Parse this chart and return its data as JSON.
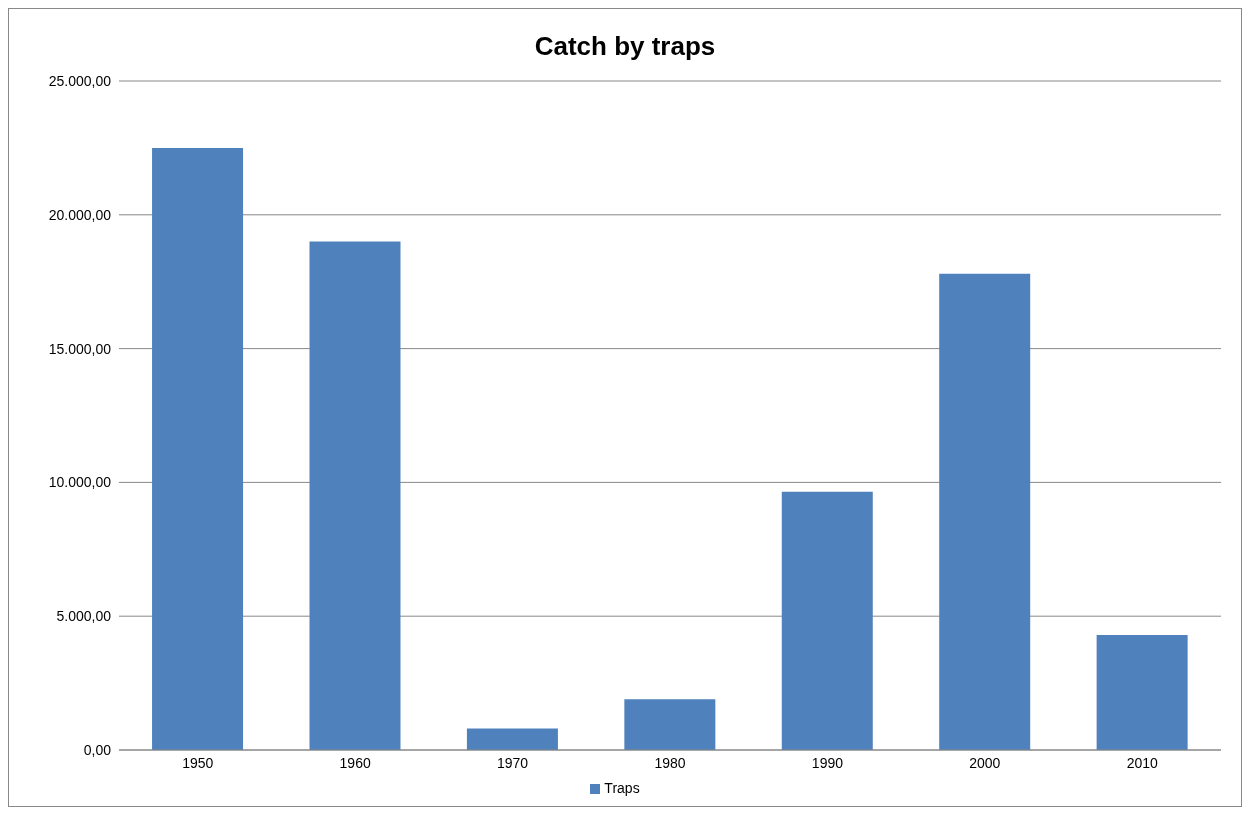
{
  "chart_data": {
    "type": "bar",
    "title": "Catch by traps",
    "categories": [
      "1950",
      "1960",
      "1970",
      "1980",
      "1990",
      "2000",
      "2010"
    ],
    "series": [
      {
        "name": "Traps",
        "color": "#4f81bd",
        "values": [
          22500,
          19000,
          800,
          1900,
          9650,
          17800,
          4300
        ]
      }
    ],
    "ylim": [
      0,
      25000
    ],
    "yticks": [
      {
        "value": 0,
        "label": "0,00"
      },
      {
        "value": 5000,
        "label": "5.000,00"
      },
      {
        "value": 10000,
        "label": "10.000,00"
      },
      {
        "value": 15000,
        "label": "15.000,00"
      },
      {
        "value": 20000,
        "label": "20.000,00"
      },
      {
        "value": 25000,
        "label": "25.000,00"
      }
    ],
    "grid": "y",
    "legend": "bottom"
  }
}
